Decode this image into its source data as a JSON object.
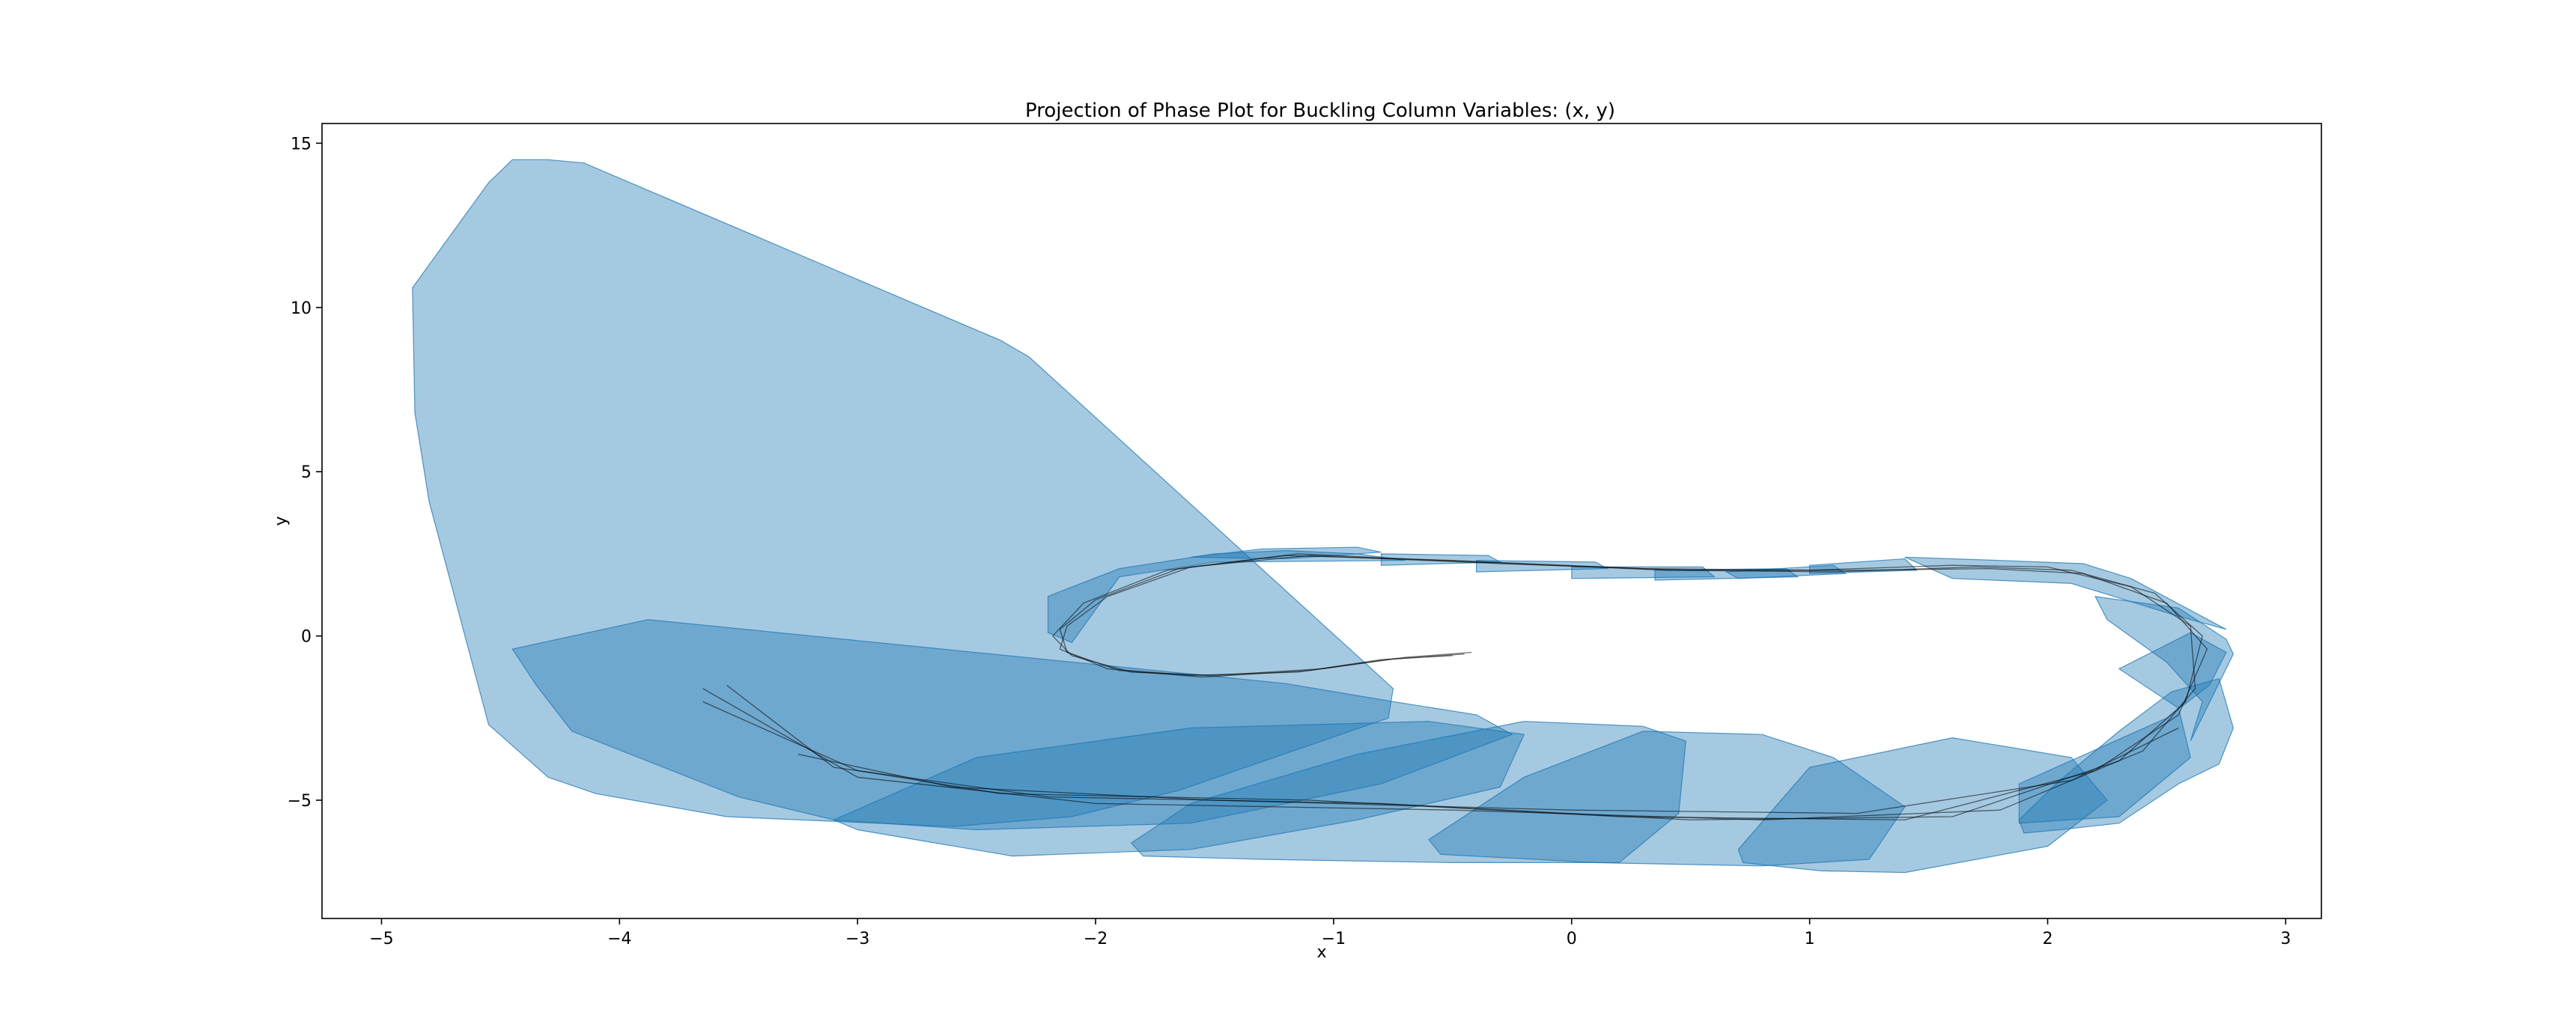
{
  "chart_data": {
    "type": "area",
    "title": "Projection of Phase Plot for Buckling Column Variables: (x, y)",
    "xlabel": "x",
    "ylabel": "y",
    "xlim": [
      -5.25,
      3.15
    ],
    "ylim": [
      -8.6,
      15.6
    ],
    "x_ticks": [
      -5,
      -4,
      -3,
      -2,
      -1,
      0,
      1,
      2,
      3
    ],
    "y_ticks": [
      -5,
      0,
      5,
      10,
      15
    ],
    "x_tick_labels": [
      "−5",
      "−4",
      "−3",
      "−2",
      "−1",
      "0",
      "1",
      "2",
      "3"
    ],
    "y_tick_labels": [
      "−5",
      "0",
      "5",
      "10",
      "15"
    ],
    "grid": false,
    "legend": "none",
    "colors": {
      "fill": "#1f77b4",
      "fill_alpha": 0.4,
      "trajectory": "#000000"
    },
    "reachable_set_polygons": [
      [
        [
          -4.87,
          10.6
        ],
        [
          -4.55,
          13.8
        ],
        [
          -4.45,
          14.5
        ],
        [
          -4.3,
          14.5
        ],
        [
          -4.15,
          14.4
        ],
        [
          -2.4,
          9.0
        ],
        [
          -2.28,
          8.5
        ],
        [
          -0.75,
          -1.6
        ],
        [
          -0.77,
          -2.5
        ],
        [
          -1.65,
          -4.7
        ],
        [
          -2.1,
          -5.5
        ],
        [
          -2.6,
          -5.8
        ],
        [
          -3.55,
          -5.5
        ],
        [
          -4.1,
          -4.8
        ],
        [
          -4.3,
          -4.3
        ],
        [
          -4.55,
          -2.7
        ],
        [
          -4.8,
          4.1
        ],
        [
          -4.86,
          6.8
        ]
      ],
      [
        [
          -3.88,
          0.5
        ],
        [
          -4.45,
          -0.4
        ],
        [
          -4.35,
          -1.5
        ],
        [
          -4.2,
          -2.9
        ],
        [
          -3.5,
          -4.9
        ],
        [
          -3.1,
          -5.6
        ],
        [
          -2.5,
          -5.9
        ],
        [
          -1.6,
          -5.7
        ],
        [
          -0.8,
          -4.5
        ],
        [
          -0.25,
          -3.0
        ],
        [
          -0.4,
          -2.4
        ],
        [
          -0.75,
          -2.0
        ],
        [
          -1.2,
          -1.45
        ]
      ],
      [
        [
          -3.1,
          -5.6
        ],
        [
          -3.0,
          -5.9
        ],
        [
          -2.35,
          -6.7
        ],
        [
          -1.6,
          -6.5
        ],
        [
          -0.9,
          -5.6
        ],
        [
          -0.3,
          -4.6
        ],
        [
          -0.2,
          -3.0
        ],
        [
          -0.6,
          -2.6
        ],
        [
          -1.6,
          -2.8
        ],
        [
          -2.5,
          -3.7
        ]
      ],
      [
        [
          -1.85,
          -6.3
        ],
        [
          -1.8,
          -6.7
        ],
        [
          -1.3,
          -6.8
        ],
        [
          -0.5,
          -6.9
        ],
        [
          0.2,
          -6.9
        ],
        [
          0.45,
          -5.4
        ],
        [
          0.48,
          -3.2
        ],
        [
          0.3,
          -2.75
        ],
        [
          -0.2,
          -2.6
        ],
        [
          -0.9,
          -3.6
        ],
        [
          -1.6,
          -5.1
        ]
      ],
      [
        [
          -0.6,
          -6.2
        ],
        [
          -0.55,
          -6.65
        ],
        [
          0.1,
          -6.9
        ],
        [
          0.8,
          -7.0
        ],
        [
          1.25,
          -6.8
        ],
        [
          1.4,
          -5.2
        ],
        [
          1.1,
          -3.7
        ],
        [
          0.8,
          -3.0
        ],
        [
          0.3,
          -2.9
        ],
        [
          -0.2,
          -4.3
        ]
      ],
      [
        [
          0.7,
          -6.5
        ],
        [
          0.72,
          -6.9
        ],
        [
          1.05,
          -7.15
        ],
        [
          1.4,
          -7.2
        ],
        [
          2.0,
          -6.4
        ],
        [
          2.25,
          -5.0
        ],
        [
          2.1,
          -3.7
        ],
        [
          1.6,
          -3.1
        ],
        [
          1.0,
          -4.0
        ]
      ],
      [
        [
          1.9,
          -6.0
        ],
        [
          1.88,
          -5.6
        ],
        [
          2.05,
          -4.4
        ],
        [
          2.3,
          -2.9
        ],
        [
          2.52,
          -1.7
        ],
        [
          2.72,
          -1.3
        ],
        [
          2.78,
          -2.8
        ],
        [
          2.72,
          -3.9
        ],
        [
          2.55,
          -4.5
        ],
        [
          2.3,
          -5.7
        ],
        [
          2.05,
          -5.9
        ]
      ],
      [
        [
          1.88,
          -5.7
        ],
        [
          1.88,
          -4.5
        ],
        [
          2.5,
          -2.5
        ],
        [
          2.68,
          -1.5
        ],
        [
          2.75,
          -0.5
        ],
        [
          2.6,
          0.1
        ],
        [
          2.3,
          -1.0
        ],
        [
          2.55,
          -2.2
        ],
        [
          2.6,
          -3.7
        ],
        [
          2.3,
          -5.5
        ]
      ],
      [
        [
          2.2,
          1.2
        ],
        [
          2.25,
          0.5
        ],
        [
          2.5,
          -0.8
        ],
        [
          2.65,
          -2.0
        ],
        [
          2.6,
          -3.2
        ],
        [
          2.78,
          -0.55
        ],
        [
          2.75,
          -0.1
        ],
        [
          2.55,
          0.85
        ]
      ],
      [
        [
          1.4,
          2.4
        ],
        [
          1.8,
          2.3
        ],
        [
          2.15,
          2.2
        ],
        [
          2.35,
          1.75
        ],
        [
          2.75,
          0.2
        ],
        [
          2.55,
          0.6
        ],
        [
          2.1,
          1.6
        ],
        [
          1.6,
          1.75
        ]
      ],
      [
        [
          -2.2,
          1.2
        ],
        [
          -2.15,
          1.35
        ],
        [
          -1.9,
          2.05
        ],
        [
          -1.5,
          2.5
        ],
        [
          -1.2,
          2.6
        ],
        [
          -0.9,
          2.5
        ],
        [
          -0.7,
          2.3
        ],
        [
          -1.5,
          2.25
        ],
        [
          -1.9,
          1.8
        ],
        [
          -2.1,
          -0.2
        ],
        [
          -2.2,
          0.1
        ]
      ],
      [
        [
          -1.3,
          2.65
        ],
        [
          -0.9,
          2.7
        ],
        [
          -0.8,
          2.55
        ],
        [
          -1.2,
          2.35
        ],
        [
          -1.6,
          2.4
        ]
      ],
      [
        [
          -0.8,
          2.5
        ],
        [
          -0.35,
          2.45
        ],
        [
          -0.3,
          2.25
        ],
        [
          -0.8,
          2.15
        ]
      ],
      [
        [
          -0.4,
          2.3
        ],
        [
          0.1,
          2.25
        ],
        [
          0.15,
          2.05
        ],
        [
          -0.4,
          1.95
        ]
      ],
      [
        [
          0.0,
          2.1
        ],
        [
          0.55,
          2.1
        ],
        [
          0.6,
          1.8
        ],
        [
          0.0,
          1.75
        ]
      ],
      [
        [
          0.35,
          2.0
        ],
        [
          0.9,
          2.05
        ],
        [
          0.95,
          1.8
        ],
        [
          0.35,
          1.7
        ]
      ],
      [
        [
          0.65,
          1.95
        ],
        [
          1.1,
          2.15
        ],
        [
          1.15,
          1.9
        ],
        [
          0.7,
          1.75
        ]
      ],
      [
        [
          1.0,
          2.15
        ],
        [
          1.4,
          2.35
        ],
        [
          1.45,
          2.0
        ],
        [
          1.0,
          1.9
        ]
      ]
    ],
    "trajectory_series": [
      [
        [
          -0.42,
          -0.5
        ],
        [
          -0.7,
          -0.65
        ],
        [
          -1.05,
          -1.0
        ],
        [
          -1.5,
          -1.2
        ],
        [
          -1.85,
          -1.1
        ],
        [
          -2.1,
          -0.6
        ],
        [
          -2.18,
          0.0
        ],
        [
          -2.05,
          1.0
        ],
        [
          -1.7,
          2.0
        ],
        [
          -1.2,
          2.45
        ],
        [
          -0.5,
          2.3
        ],
        [
          0.3,
          2.05
        ],
        [
          1.0,
          2.0
        ],
        [
          1.6,
          2.15
        ],
        [
          2.0,
          2.1
        ],
        [
          2.35,
          1.5
        ],
        [
          2.6,
          0.3
        ],
        [
          2.62,
          -1.6
        ],
        [
          2.4,
          -3.5
        ],
        [
          1.8,
          -5.3
        ],
        [
          0.8,
          -5.6
        ],
        [
          -0.5,
          -5.3
        ],
        [
          -2.0,
          -5.1
        ],
        [
          -3.0,
          -4.3
        ],
        [
          -3.65,
          -1.6
        ]
      ],
      [
        [
          -0.45,
          -0.55
        ],
        [
          -0.75,
          -0.7
        ],
        [
          -1.1,
          -1.05
        ],
        [
          -1.55,
          -1.25
        ],
        [
          -1.9,
          -1.05
        ],
        [
          -2.12,
          -0.5
        ],
        [
          -2.15,
          0.2
        ],
        [
          -2.0,
          1.1
        ],
        [
          -1.65,
          2.05
        ],
        [
          -1.15,
          2.5
        ],
        [
          -0.4,
          2.25
        ],
        [
          0.4,
          2.0
        ],
        [
          1.1,
          1.95
        ],
        [
          1.7,
          2.1
        ],
        [
          2.1,
          2.0
        ],
        [
          2.45,
          1.3
        ],
        [
          2.65,
          0.0
        ],
        [
          2.58,
          -2.0
        ],
        [
          2.3,
          -3.8
        ],
        [
          1.6,
          -5.5
        ],
        [
          0.5,
          -5.6
        ],
        [
          -0.8,
          -5.1
        ],
        [
          -2.2,
          -4.9
        ],
        [
          -3.1,
          -4.0
        ],
        [
          -3.55,
          -1.5
        ]
      ],
      [
        [
          -0.5,
          -0.6
        ],
        [
          -0.8,
          -0.72
        ],
        [
          -1.15,
          -1.1
        ],
        [
          -1.6,
          -1.2
        ],
        [
          -1.95,
          -1.0
        ],
        [
          -2.15,
          -0.4
        ],
        [
          -2.12,
          0.3
        ],
        [
          -1.95,
          1.2
        ],
        [
          -1.6,
          2.1
        ],
        [
          -1.1,
          2.45
        ],
        [
          -0.3,
          2.2
        ],
        [
          0.5,
          2.0
        ],
        [
          1.2,
          2.0
        ],
        [
          1.75,
          2.05
        ],
        [
          2.15,
          1.9
        ],
        [
          2.5,
          1.0
        ],
        [
          2.67,
          -0.4
        ],
        [
          2.55,
          -2.4
        ],
        [
          2.2,
          -4.1
        ],
        [
          1.4,
          -5.6
        ],
        [
          0.2,
          -5.5
        ],
        [
          -1.1,
          -5.0
        ],
        [
          -2.4,
          -4.8
        ],
        [
          -3.0,
          -4.1
        ],
        [
          -3.65,
          -2.0
        ]
      ],
      [
        [
          2.55,
          -2.8
        ],
        [
          2.1,
          -4.4
        ],
        [
          1.2,
          -5.4
        ],
        [
          0.0,
          -5.3
        ],
        [
          -1.5,
          -5.0
        ],
        [
          -2.6,
          -4.6
        ],
        [
          -3.25,
          -3.6
        ]
      ]
    ]
  }
}
